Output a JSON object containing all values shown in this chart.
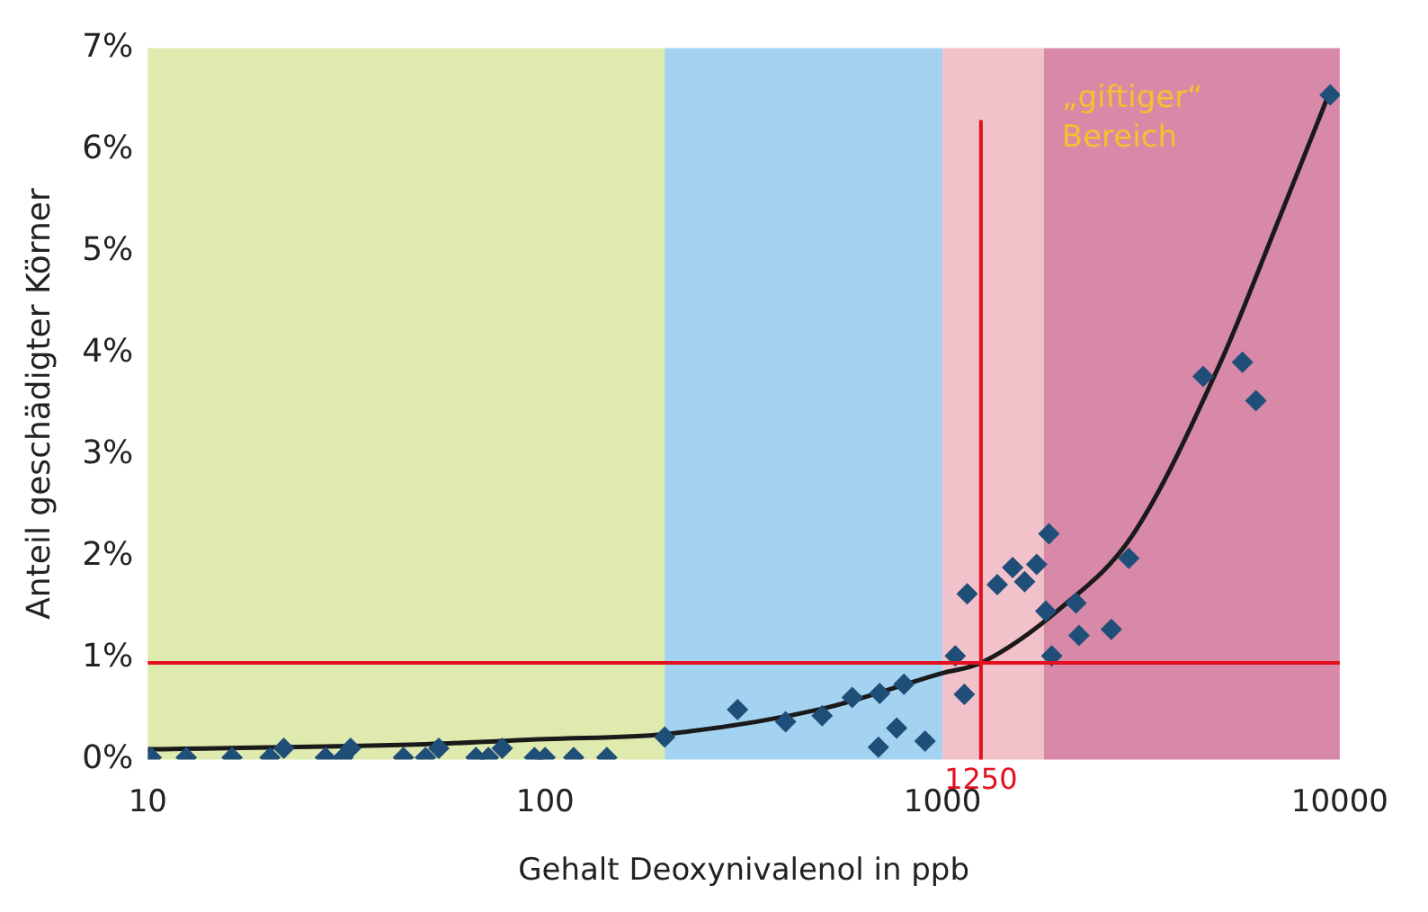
{
  "chart_data": {
    "type": "scatter",
    "xlabel": "Gehalt Deoxynivalenol in ppb",
    "ylabel": "Anteil geschädigter Körner",
    "log": "x",
    "grid": false,
    "legend": false,
    "marker": "diamond",
    "xlim": [
      10,
      10000
    ],
    "xticks": [
      10,
      100,
      1000,
      10000
    ],
    "ylim": [
      0,
      7
    ],
    "yticks": [
      {
        "value": 0,
        "label": "0%"
      },
      {
        "value": 1,
        "label": "1%"
      },
      {
        "value": 2,
        "label": "2%"
      },
      {
        "value": 3,
        "label": "3%"
      },
      {
        "value": 4,
        "label": "4%"
      },
      {
        "value": 5,
        "label": "5%"
      },
      {
        "value": 6,
        "label": "6%"
      },
      {
        "value": 7,
        "label": "7%"
      }
    ],
    "series": [
      {
        "color": "#1f4e79",
        "x": [
          10.2,
          12.5,
          16.3,
          20.3,
          22,
          28,
          31,
          32.4,
          44,
          50,
          54,
          67,
          72,
          78,
          94,
          100,
          118,
          143,
          200,
          305,
          403,
          498,
          593,
          695,
          800,
          690,
          767,
          904,
          1077,
          1135,
          1154,
          1374,
          1502,
          1727,
          1853,
          1610,
          1820,
          1884,
          2168,
          2206,
          2660,
          2944,
          4530,
          5690,
          6150,
          9460
        ],
        "values": [
          0.02,
          0.02,
          0.02,
          0.02,
          0.11,
          0.02,
          0.02,
          0.11,
          0.02,
          0.02,
          0.11,
          0.02,
          0.02,
          0.11,
          0.02,
          0.02,
          0.02,
          0.02,
          0.22,
          0.49,
          0.37,
          0.43,
          0.61,
          0.65,
          0.74,
          0.12,
          0.31,
          0.18,
          1.02,
          0.64,
          1.63,
          1.72,
          1.89,
          1.92,
          2.22,
          1.75,
          1.46,
          1.02,
          1.54,
          1.22,
          1.28,
          1.98,
          3.77,
          3.91,
          3.53,
          6.54
        ]
      },
      {
        "type": "line",
        "color": "#1a1a1a",
        "marker": "none",
        "x": [
          10,
          50,
          100,
          200,
          500,
          1000,
          1250,
          2000,
          3000,
          5000,
          7000,
          9500
        ],
        "values": [
          0.1,
          0.15,
          0.2,
          0.25,
          0.5,
          0.85,
          0.95,
          1.5,
          2.2,
          3.9,
          5.3,
          6.6
        ]
      }
    ],
    "bands": [
      {
        "axis": "x",
        "from": 10,
        "to": 200,
        "color": "#c5d86d"
      },
      {
        "axis": "x",
        "from": 200,
        "to": 1000,
        "color": "#5aaee6"
      },
      {
        "axis": "x",
        "from": 1000,
        "to": 1800,
        "color": "#e8909e"
      },
      {
        "axis": "x",
        "from": 1800,
        "to": 10000,
        "color": "#b8285f"
      }
    ],
    "ref_lines": [
      {
        "axis": "y",
        "value": 0.95,
        "color": "#e3101f"
      },
      {
        "axis": "x",
        "value": 1250,
        "label": "1250",
        "color": "#e3101f"
      }
    ],
    "annotations": [
      "„giftiger“ Bereich"
    ]
  }
}
